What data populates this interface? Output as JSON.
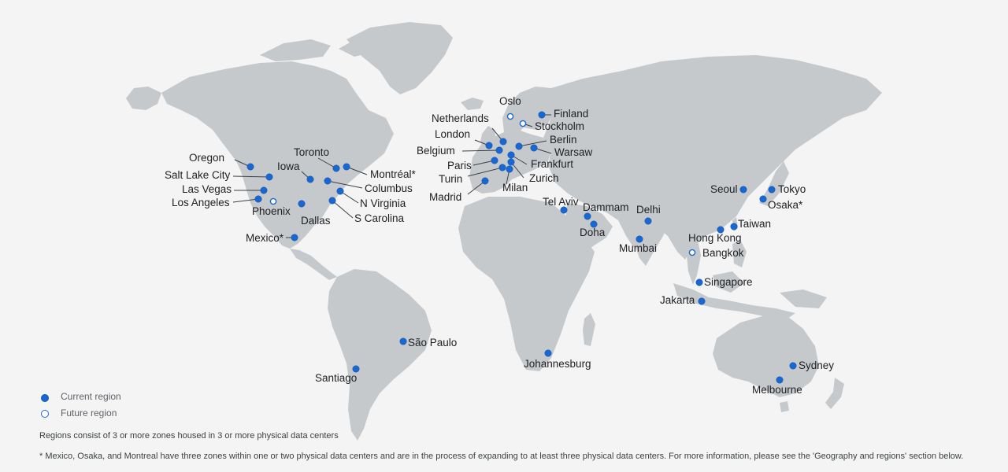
{
  "legend": {
    "current_label": "Current region",
    "future_label": "Future region"
  },
  "colors": {
    "current": "#1967d2",
    "future_fill": "#ffffff",
    "land": "#c6c9cc",
    "background": "#f4f4f4"
  },
  "notes": {
    "zones": "Regions consist of 3 or more zones housed in 3 or more physical data centers",
    "footnote": "* Mexico, Osaka, and Montreal have three zones within one or two physical data centers and are in the process of expanding to at least three physical data centers. For more information, please see the 'Geography and regions' section below."
  },
  "regions": [
    {
      "id": "oregon",
      "name": "Oregon",
      "status": "current"
    },
    {
      "id": "salt-lake-city",
      "name": "Salt Lake City",
      "status": "current"
    },
    {
      "id": "las-vegas",
      "name": "Las Vegas",
      "status": "current"
    },
    {
      "id": "los-angeles",
      "name": "Los Angeles",
      "status": "current"
    },
    {
      "id": "phoenix",
      "name": "Phoenix",
      "status": "future"
    },
    {
      "id": "iowa",
      "name": "Iowa",
      "status": "current"
    },
    {
      "id": "dallas",
      "name": "Dallas",
      "status": "current"
    },
    {
      "id": "toronto",
      "name": "Toronto",
      "status": "current"
    },
    {
      "id": "montreal",
      "name": "Montréal*",
      "status": "current"
    },
    {
      "id": "columbus",
      "name": "Columbus",
      "status": "current"
    },
    {
      "id": "n-virginia",
      "name": "N Virginia",
      "status": "current"
    },
    {
      "id": "s-carolina",
      "name": "S Carolina",
      "status": "current"
    },
    {
      "id": "mexico",
      "name": "Mexico*",
      "status": "current"
    },
    {
      "id": "sao-paulo",
      "name": "São Paulo",
      "status": "current"
    },
    {
      "id": "santiago",
      "name": "Santiago",
      "status": "current"
    },
    {
      "id": "oslo",
      "name": "Oslo",
      "status": "future"
    },
    {
      "id": "stockholm",
      "name": "Stockholm",
      "status": "future"
    },
    {
      "id": "finland",
      "name": "Finland",
      "status": "current"
    },
    {
      "id": "netherlands",
      "name": "Netherlands",
      "status": "current"
    },
    {
      "id": "london",
      "name": "London",
      "status": "current"
    },
    {
      "id": "belgium",
      "name": "Belgium",
      "status": "current"
    },
    {
      "id": "berlin",
      "name": "Berlin",
      "status": "current"
    },
    {
      "id": "warsaw",
      "name": "Warsaw",
      "status": "current"
    },
    {
      "id": "frankfurt",
      "name": "Frankfurt",
      "status": "current"
    },
    {
      "id": "paris",
      "name": "Paris",
      "status": "current"
    },
    {
      "id": "zurich",
      "name": "Zurich",
      "status": "current"
    },
    {
      "id": "turin",
      "name": "Turin",
      "status": "current"
    },
    {
      "id": "milan",
      "name": "Milan",
      "status": "current"
    },
    {
      "id": "madrid",
      "name": "Madrid",
      "status": "current"
    },
    {
      "id": "tel-aviv",
      "name": "Tel Aviv",
      "status": "current"
    },
    {
      "id": "dammam",
      "name": "Dammam",
      "status": "current"
    },
    {
      "id": "doha",
      "name": "Doha",
      "status": "current"
    },
    {
      "id": "delhi",
      "name": "Delhi",
      "status": "current"
    },
    {
      "id": "mumbai",
      "name": "Mumbai",
      "status": "current"
    },
    {
      "id": "johannesburg",
      "name": "Johannesburg",
      "status": "current"
    },
    {
      "id": "seoul",
      "name": "Seoul",
      "status": "current"
    },
    {
      "id": "tokyo",
      "name": "Tokyo",
      "status": "current"
    },
    {
      "id": "osaka",
      "name": "Osaka*",
      "status": "current"
    },
    {
      "id": "taiwan",
      "name": "Taiwan",
      "status": "current"
    },
    {
      "id": "hong-kong",
      "name": "Hong Kong",
      "status": "current"
    },
    {
      "id": "bangkok",
      "name": "Bangkok",
      "status": "future"
    },
    {
      "id": "singapore",
      "name": "Singapore",
      "status": "current"
    },
    {
      "id": "jakarta",
      "name": "Jakarta",
      "status": "current"
    },
    {
      "id": "sydney",
      "name": "Sydney",
      "status": "current"
    },
    {
      "id": "melbourne",
      "name": "Melbourne",
      "status": "current"
    }
  ]
}
